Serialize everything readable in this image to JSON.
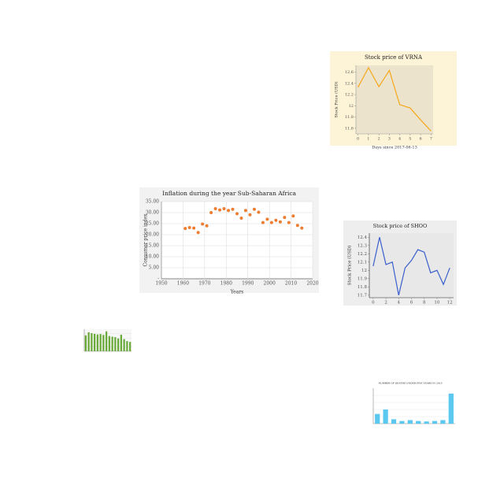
{
  "chart_data": [
    {
      "type": "line",
      "title": "Stock price of VRNA",
      "xlabel": "Days since 2017-06-13",
      "ylabel": "Stock Price (USD)",
      "x": [
        0,
        1,
        2,
        3,
        4,
        5,
        6,
        7
      ],
      "series": [
        {
          "color": "#f5a81c",
          "values": [
            12.33,
            12.68,
            12.34,
            12.63,
            12.02,
            11.96,
            11.75,
            11.55
          ]
        }
      ],
      "xlim": [
        -0.2,
        7.2
      ],
      "xticks": [
        0,
        1,
        2,
        3,
        4,
        5,
        6,
        7
      ],
      "ylim": [
        11.5,
        12.72
      ],
      "yticks": [
        11.6,
        11.8,
        12.0,
        12.2,
        12.4,
        12.6
      ],
      "grid": false
    },
    {
      "type": "scatter",
      "title": "Inflation during the year Sub-Saharan Africa",
      "xlabel": "Years",
      "ylabel": "Consumer price index",
      "x": [
        1961,
        1963,
        1965,
        1967,
        1969,
        1971,
        1973,
        1975,
        1977,
        1979,
        1981,
        1983,
        1985,
        1987,
        1989,
        1991,
        1993,
        1995,
        1997,
        1999,
        2001,
        2003,
        2005,
        2007,
        2009,
        2011,
        2013,
        2015
      ],
      "series": [
        {
          "color": "#ed7d31",
          "values": [
            22.8,
            23.2,
            23,
            21,
            24.8,
            24,
            30,
            31.8,
            31.2,
            31.8,
            31,
            31.5,
            29.5,
            27.5,
            31,
            29,
            31.5,
            30.2,
            25.5,
            27,
            25.5,
            26.5,
            25.8,
            27.8,
            25.5,
            28.5,
            24.2,
            23
          ]
        }
      ],
      "xlim": [
        1950,
        2020
      ],
      "xticks": [
        1950,
        1960,
        1970,
        1980,
        1990,
        2000,
        2010,
        2020
      ],
      "ylim": [
        0,
        35
      ],
      "yticks": [
        {
          "value": 0,
          "label": "-"
        },
        {
          "value": 5,
          "label": "5.00"
        },
        {
          "value": 10,
          "label": "10.00"
        },
        {
          "value": 15,
          "label": "15.00"
        },
        {
          "value": 20,
          "label": "20.00"
        },
        {
          "value": 25,
          "label": "25.00"
        },
        {
          "value": 30,
          "label": "30.00"
        },
        {
          "value": 35,
          "label": "35.00"
        }
      ],
      "grid": true
    },
    {
      "type": "line",
      "title": "Stock price of SHOO",
      "ylabel": "Stock Price (USD)",
      "x": [
        0,
        1,
        2,
        3,
        4,
        5,
        6,
        7,
        8,
        9,
        10,
        11,
        12
      ],
      "series": [
        {
          "color": "#3a5fcd",
          "values": [
            12.05,
            12.4,
            12.07,
            12.1,
            11.7,
            12.03,
            12.12,
            12.25,
            12.22,
            11.97,
            12.0,
            11.83,
            12.03
          ]
        }
      ],
      "xlim": [
        -0.6,
        12.6
      ],
      "xticks": [
        0,
        2,
        4,
        6,
        8,
        10,
        12
      ],
      "ylim": [
        11.67,
        12.45
      ],
      "yticks": [
        11.7,
        11.8,
        11.9,
        12.0,
        12.1,
        12.2,
        12.3,
        12.4
      ],
      "grid": false
    },
    {
      "type": "bar",
      "categories": [
        null,
        null,
        null,
        null,
        null,
        null,
        null,
        null,
        null,
        null,
        null,
        null,
        null,
        null,
        null,
        null
      ],
      "values": [
        7.2,
        8.6,
        8.2,
        7.9,
        7.6,
        7.8,
        7.4,
        9.0,
        6.9,
        6.6,
        6.4,
        5.8,
        7.5,
        5.5,
        4.6,
        4.2
      ],
      "color": "#6aaa3a",
      "ylim": [
        0,
        10
      ],
      "grid": true
    },
    {
      "type": "bar",
      "title": "NUMBER OF DEATHS UNDER FIVE YEARS IN 2015",
      "categories": [
        null,
        null,
        null,
        null,
        null,
        null,
        null,
        null,
        null,
        null
      ],
      "values": [
        22,
        32,
        10,
        6,
        8,
        6,
        5,
        6,
        8,
        68
      ],
      "color": "#5bc8f0",
      "ylim": [
        0,
        80
      ],
      "grid": true
    }
  ]
}
